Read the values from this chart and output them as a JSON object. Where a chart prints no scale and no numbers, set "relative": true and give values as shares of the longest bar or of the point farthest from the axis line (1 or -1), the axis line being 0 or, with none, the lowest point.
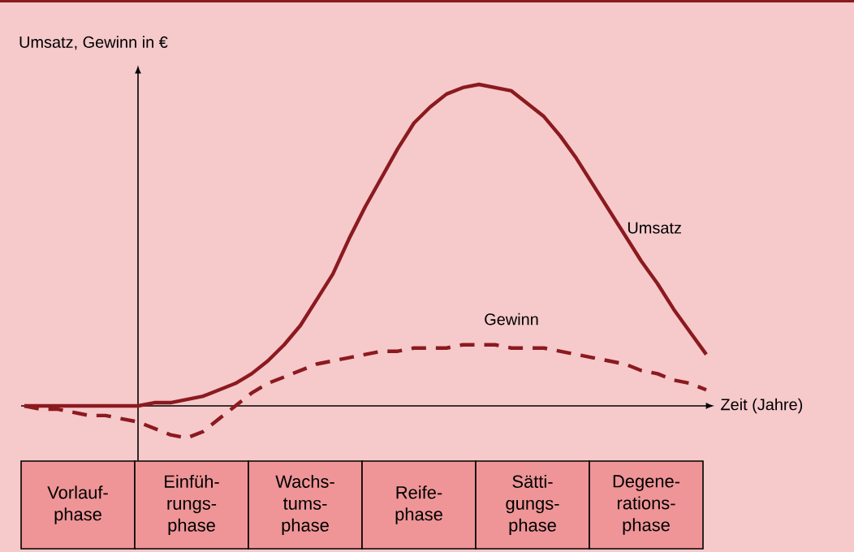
{
  "chart_data": {
    "type": "line",
    "relative": true,
    "ylabel": "Umsatz, Gewinn in €",
    "xlabel": "Zeit (Jahre)",
    "categories": [
      null,
      null,
      null,
      null,
      null,
      null,
      null,
      null,
      null,
      null,
      null,
      null,
      null,
      null,
      null,
      null,
      null,
      null,
      null,
      null,
      null,
      null,
      null,
      null,
      null,
      null,
      null,
      null,
      null,
      null,
      null,
      null,
      null,
      null,
      null,
      null,
      null,
      null,
      null,
      null,
      null,
      null,
      null
    ],
    "series": [
      {
        "name": "Umsatz",
        "color": "#8b1a1f",
        "line_style": "solid",
        "values": [
          0,
          0,
          0,
          0,
          0,
          0,
          0,
          0,
          0.01,
          0.01,
          0.02,
          0.03,
          0.05,
          0.07,
          0.1,
          0.14,
          0.19,
          0.25,
          0.33,
          0.41,
          0.52,
          0.62,
          0.71,
          0.8,
          0.88,
          0.93,
          0.97,
          0.99,
          1.0,
          0.99,
          0.98,
          0.94,
          0.9,
          0.84,
          0.77,
          0.69,
          0.61,
          0.53,
          0.45,
          0.38,
          0.3,
          0.23,
          0.16
        ]
      },
      {
        "name": "Gewinn",
        "color": "#8b1a1f",
        "line_style": "dashed",
        "values": [
          0,
          -0.01,
          -0.01,
          -0.02,
          -0.03,
          -0.03,
          -0.04,
          -0.05,
          -0.07,
          -0.09,
          -0.1,
          -0.08,
          -0.04,
          0,
          0.04,
          0.07,
          0.09,
          0.11,
          0.13,
          0.14,
          0.15,
          0.16,
          0.17,
          0.17,
          0.18,
          0.18,
          0.18,
          0.19,
          0.19,
          0.19,
          0.18,
          0.18,
          0.18,
          0.17,
          0.16,
          0.15,
          0.14,
          0.13,
          0.11,
          0.1,
          0.08,
          0.07,
          0.05
        ]
      }
    ],
    "annotations": [
      "Vorlauf-phase",
      "Einfüh-rungs-phase",
      "Wachs-tums-phase",
      "Reife-phase",
      "Sätti-gungs-phase",
      "Degene-rations-phase"
    ],
    "marker": "none"
  }
}
